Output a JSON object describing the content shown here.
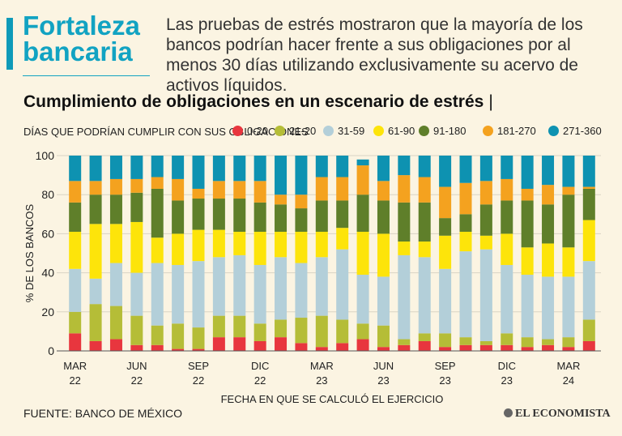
{
  "headline": {
    "line1": "Fortaleza",
    "line2": "bancaria"
  },
  "intro": "Las pruebas de estrés mostraron que la mayoría de los bancos podrían hacer frente a sus obligaciones por al menos 30 días utilizando exclusivamente su acervo de activos líquidos.",
  "chart_title": "Cumplimiento de obligaciones en un escenario de estrés",
  "chart_title_cursor": "|",
  "source": "FUENTE: BANCO DE MÉXICO",
  "brand": "EL ECONOMISTA",
  "colors": {
    "0-20": "#e8363e",
    "21-20": "#b5bd37",
    "31-59": "#b3cfd9",
    "61-90": "#fde40a",
    "91-180": "#5f7f2a",
    "181-270": "#f4a21f",
    "271-360": "#0e92b1"
  },
  "chart_data": {
    "type": "bar",
    "stacked": true,
    "title": "Cumplimiento de obligaciones en un escenario de estrés",
    "legend_title": "DÍAS QUE PODRÍAN CUMPLIR CON SUS OBLIGACIONES",
    "xlabel": "FECHA EN QUE SE CALCULÓ EL EJERCICIO",
    "ylabel": "% DE LOS BANCOS",
    "ylim": [
      0,
      100
    ],
    "yticks": [
      "0",
      "20",
      "40",
      "60",
      "80",
      "100"
    ],
    "xtick_labels": [
      {
        "index": 0,
        "month": "MAR",
        "year": "22"
      },
      {
        "index": 3,
        "month": "JUN",
        "year": "22"
      },
      {
        "index": 6,
        "month": "SEP",
        "year": "22"
      },
      {
        "index": 9,
        "month": "DIC",
        "year": "22"
      },
      {
        "index": 12,
        "month": "MAR",
        "year": "23"
      },
      {
        "index": 15,
        "month": "JUN",
        "year": "23"
      },
      {
        "index": 18,
        "month": "SEP",
        "year": "23"
      },
      {
        "index": 21,
        "month": "DIC",
        "year": "23"
      },
      {
        "index": 24,
        "month": "MAR",
        "year": "24"
      }
    ],
    "series": [
      {
        "name": "0-20",
        "values": [
          9,
          5,
          6,
          3,
          3,
          1,
          1,
          7,
          7,
          5,
          7,
          4,
          2,
          4,
          6,
          2,
          3,
          5,
          2,
          3,
          3,
          3,
          2,
          3,
          2,
          5
        ]
      },
      {
        "name": "21-20",
        "values": [
          11,
          19,
          17,
          15,
          10,
          13,
          11,
          11,
          11,
          9,
          9,
          13,
          16,
          12,
          8,
          11,
          3,
          4,
          7,
          4,
          2,
          6,
          5,
          3,
          5,
          11
        ]
      },
      {
        "name": "31-59",
        "values": [
          22,
          13,
          22,
          22,
          32,
          30,
          34,
          30,
          31,
          30,
          32,
          28,
          30,
          36,
          25,
          25,
          43,
          39,
          33,
          44,
          47,
          35,
          32,
          32,
          31,
          30
        ]
      },
      {
        "name": "61-90",
        "values": [
          19,
          28,
          20,
          26,
          13,
          16,
          16,
          14,
          12,
          17,
          13,
          16,
          13,
          11,
          22,
          22,
          7,
          8,
          17,
          10,
          7,
          16,
          14,
          17,
          15,
          21
        ]
      },
      {
        "name": "91-180",
        "values": [
          15,
          15,
          15,
          15,
          25,
          17,
          16,
          16,
          17,
          15,
          14,
          12,
          16,
          14,
          19,
          17,
          20,
          20,
          9,
          9,
          16,
          17,
          24,
          20,
          27,
          16
        ]
      },
      {
        "name": "181-270",
        "values": [
          11,
          7,
          8,
          7,
          6,
          11,
          5,
          9,
          9,
          11,
          5,
          7,
          12,
          12,
          15,
          10,
          14,
          13,
          16,
          16,
          12,
          11,
          6,
          10,
          4,
          1
        ]
      },
      {
        "name": "271-360",
        "values": [
          13,
          13,
          12,
          12,
          11,
          12,
          17,
          13,
          13,
          13,
          20,
          20,
          11,
          11,
          3,
          13,
          10,
          11,
          16,
          14,
          13,
          12,
          17,
          15,
          16,
          16
        ]
      }
    ]
  }
}
